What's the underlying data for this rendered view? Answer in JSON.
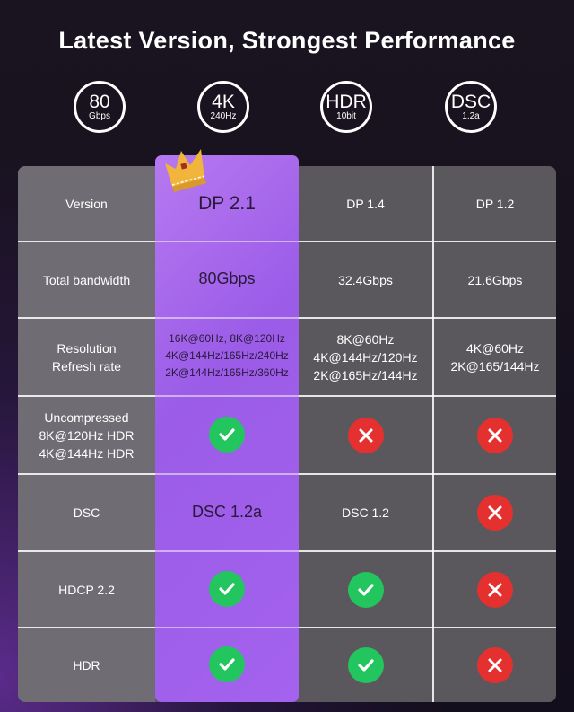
{
  "title": "Latest Version, Strongest Performance",
  "badges": [
    {
      "big": "80",
      "small": "Gbps"
    },
    {
      "big": "4K",
      "small": "240Hz"
    },
    {
      "big": "HDR",
      "small": "10bit"
    },
    {
      "big": "DSC",
      "small": "1.2a"
    }
  ],
  "colors": {
    "highlight": "#a462ee",
    "check": "#22c55e",
    "cross": "#e53030"
  },
  "rows": [
    {
      "label": "Version",
      "dp21": "DP 2.1",
      "dp14": "DP 1.4",
      "dp12": "DP 1.2"
    },
    {
      "label": "Total bandwidth",
      "dp21": "80Gbps",
      "dp14": "32.4Gbps",
      "dp12": "21.6Gbps"
    },
    {
      "label": "Resolution\nRefresh rate",
      "dp21": "16K@60Hz, 8K@120Hz\n4K@144Hz/165Hz/240Hz\n2K@144Hz/165Hz/360Hz",
      "dp14": "8K@60Hz\n4K@144Hz/120Hz\n2K@165Hz/144Hz",
      "dp12": "4K@60Hz\n2K@165/144Hz"
    },
    {
      "label": "Uncompressed\n8K@120Hz HDR\n4K@144Hz HDR",
      "dp21": "check",
      "dp14": "cross",
      "dp12": "cross"
    },
    {
      "label": "DSC",
      "dp21": "DSC 1.2a",
      "dp14": "DSC 1.2",
      "dp12": "cross"
    },
    {
      "label": "HDCP 2.2",
      "dp21": "check",
      "dp14": "check",
      "dp12": "cross"
    },
    {
      "label": "HDR",
      "dp21": "check",
      "dp14": "check",
      "dp12": "cross"
    }
  ]
}
